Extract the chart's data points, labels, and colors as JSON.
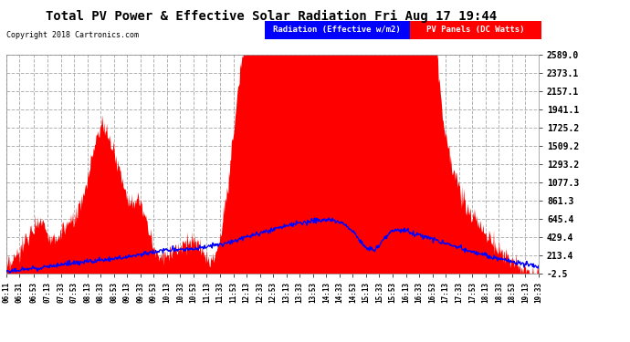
{
  "title": "Total PV Power & Effective Solar Radiation Fri Aug 17 19:44",
  "copyright": "Copyright 2018 Cartronics.com",
  "legend_radiation": "Radiation (Effective w/m2)",
  "legend_pv": "PV Panels (DC Watts)",
  "bg_color": "#ffffff",
  "plot_bg_color": "#ffffff",
  "grid_color": "#aaaaaa",
  "title_color": "#000000",
  "radiation_color": "#0000ff",
  "pv_color": "#ff0000",
  "yticks": [
    -2.5,
    213.4,
    429.4,
    645.4,
    861.3,
    1077.3,
    1293.2,
    1509.2,
    1725.2,
    1941.1,
    2157.1,
    2373.1,
    2589.0
  ],
  "ymin": -2.5,
  "ymax": 2589.0,
  "xtick_labels": [
    "06:11",
    "06:31",
    "06:53",
    "07:13",
    "07:33",
    "07:53",
    "08:13",
    "08:33",
    "08:53",
    "09:13",
    "09:33",
    "09:53",
    "10:13",
    "10:33",
    "10:53",
    "11:13",
    "11:33",
    "11:53",
    "12:13",
    "12:33",
    "12:53",
    "13:13",
    "13:33",
    "13:53",
    "14:13",
    "14:33",
    "14:53",
    "15:13",
    "15:33",
    "15:53",
    "16:13",
    "16:33",
    "16:53",
    "17:13",
    "17:33",
    "17:53",
    "18:13",
    "18:33",
    "18:53",
    "19:13",
    "19:33"
  ]
}
